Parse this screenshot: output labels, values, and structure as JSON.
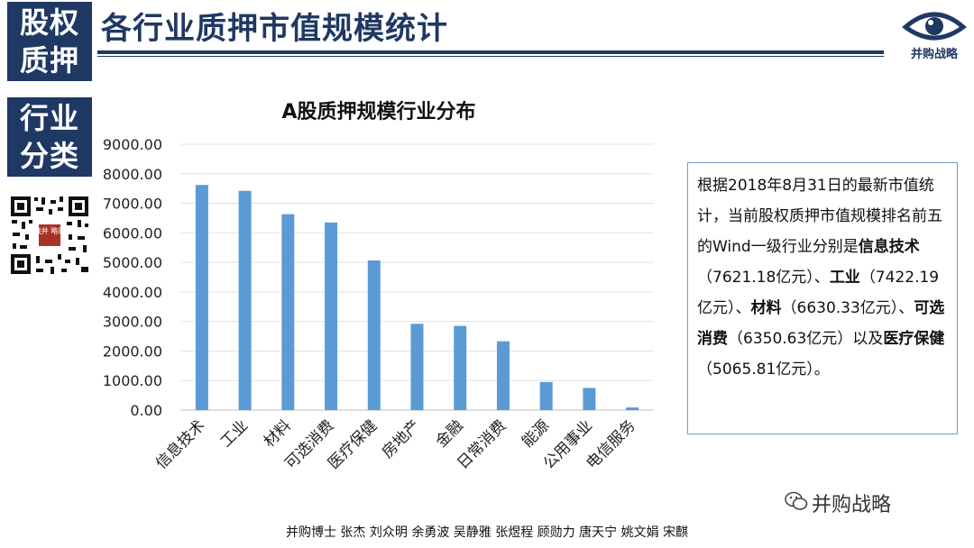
{
  "side": {
    "block1": [
      "股权",
      "质押"
    ],
    "block2": [
      "行业",
      "分类"
    ]
  },
  "header": {
    "title": "各行业质押市值规模统计",
    "logo_text": "并购战略"
  },
  "qr": {
    "seal_text": "战并 略购"
  },
  "chart_data": {
    "type": "bar",
    "title": "A股质押规模行业分布",
    "categories": [
      "信息技术",
      "工业",
      "材料",
      "可选消费",
      "医疗保健",
      "房地产",
      "金融",
      "日常消费",
      "能源",
      "公用事业",
      "电信服务"
    ],
    "values": [
      7621.18,
      7422.19,
      6630.33,
      6350.63,
      5065.81,
      2920,
      2850,
      2330,
      950,
      750,
      90
    ],
    "ylim": [
      0,
      9000
    ],
    "yticks": [
      "0.00",
      "1000.00",
      "2000.00",
      "3000.00",
      "4000.00",
      "5000.00",
      "6000.00",
      "7000.00",
      "8000.00",
      "9000.00"
    ],
    "bar_color": "#5b9bd5",
    "grid": true,
    "legend": "none"
  },
  "info": {
    "intro": "根据2018年8月31日的最新市值统计，当前股权质押市值规模排名前五的Wind一级行业分别是",
    "items": [
      {
        "name": "信息技术",
        "value": "（7621.18亿元）、"
      },
      {
        "name": "工业",
        "value": "（7422.19亿元）、"
      },
      {
        "name": "材料",
        "value": "（6630.33亿元）、"
      },
      {
        "name": "可选消费",
        "value": "（6350.63亿元）以及"
      },
      {
        "name": "医疗保健",
        "value": "（5065.81亿元）。"
      }
    ]
  },
  "footer": {
    "authors": "并购博士 张杰 刘众明 余勇波 吴静雅 张煜程  顾勋力 唐天宁 姚文娟 宋麒"
  },
  "watermark": {
    "text": "并购战略"
  }
}
